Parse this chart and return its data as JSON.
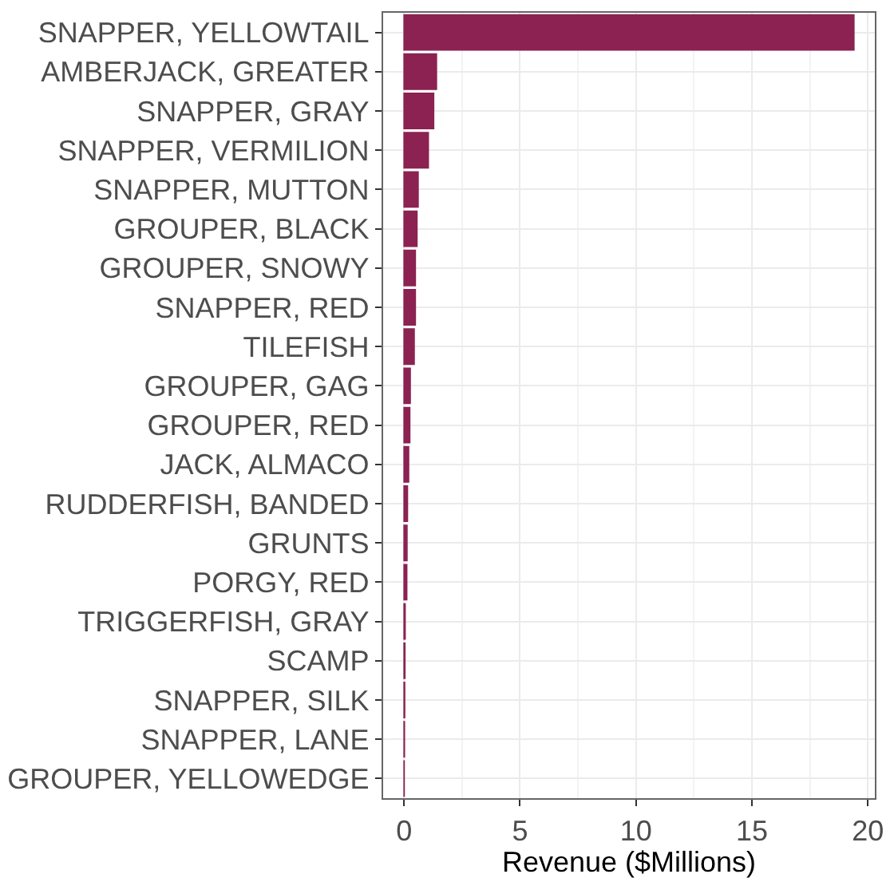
{
  "chart_data": {
    "type": "bar",
    "orientation": "horizontal",
    "xlabel": "Revenue ($Millions)",
    "categories": [
      "SNAPPER, YELLOWTAIL",
      "AMBERJACK, GREATER",
      "SNAPPER, GRAY",
      "SNAPPER, VERMILION",
      "SNAPPER, MUTTON",
      "GROUPER, BLACK",
      "GROUPER, SNOWY",
      "SNAPPER, RED",
      "TILEFISH",
      "GROUPER, GAG",
      "GROUPER, RED",
      "JACK, ALMACO",
      "RUDDERFISH, BANDED",
      "GRUNTS",
      "PORGY, RED",
      "TRIGGERFISH, GRAY",
      "SCAMP",
      "SNAPPER, SILK",
      "SNAPPER, LANE",
      "GROUPER, YELLOWEDGE"
    ],
    "values": [
      19.4,
      1.4,
      1.28,
      1.05,
      0.61,
      0.56,
      0.49,
      0.49,
      0.44,
      0.27,
      0.25,
      0.2,
      0.15,
      0.13,
      0.12,
      0.05,
      0.04,
      0.03,
      0.02,
      0.01
    ],
    "color": "#8b2252",
    "xlim": [
      -0.9,
      20.3
    ],
    "xticks": [
      0,
      5,
      10,
      15,
      20
    ],
    "grid": true
  }
}
